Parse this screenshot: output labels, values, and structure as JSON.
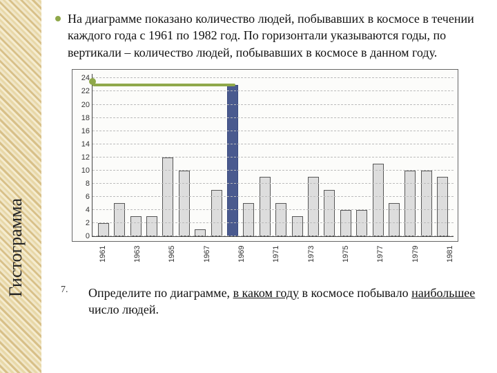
{
  "sidebar": {
    "title": "Гистограмма"
  },
  "problem": {
    "text": "На диаграмме показано количество людей, побывавших в космосе в течении каждого года с 1961 по 1982 год. По горизонтали указываются годы, по вертикали – количество людей, побывавших в космосе в данном году."
  },
  "chart": {
    "type": "bar",
    "y_ticks": [
      0,
      2,
      4,
      6,
      8,
      10,
      12,
      14,
      16,
      18,
      20,
      22,
      24
    ],
    "y_max": 25,
    "bars": [
      {
        "year": "1961",
        "value": 2,
        "highlighted": false
      },
      {
        "year": "1962",
        "value": 5,
        "highlighted": false
      },
      {
        "year": "1963",
        "value": 3,
        "highlighted": false
      },
      {
        "year": "1964",
        "value": 3,
        "highlighted": false
      },
      {
        "year": "1965",
        "value": 12,
        "highlighted": false
      },
      {
        "year": "1966",
        "value": 10,
        "highlighted": false
      },
      {
        "year": "1967",
        "value": 1,
        "highlighted": false
      },
      {
        "year": "1968",
        "value": 7,
        "highlighted": false
      },
      {
        "year": "1969",
        "value": 23,
        "highlighted": true
      },
      {
        "year": "1970",
        "value": 5,
        "highlighted": false
      },
      {
        "year": "1971",
        "value": 9,
        "highlighted": false
      },
      {
        "year": "1972",
        "value": 5,
        "highlighted": false
      },
      {
        "year": "1973",
        "value": 3,
        "highlighted": false
      },
      {
        "year": "1974",
        "value": 9,
        "highlighted": false
      },
      {
        "year": "1975",
        "value": 7,
        "highlighted": false
      },
      {
        "year": "1976",
        "value": 4,
        "highlighted": false
      },
      {
        "year": "1977",
        "value": 4,
        "highlighted": false
      },
      {
        "year": "1978",
        "value": 11,
        "highlighted": false
      },
      {
        "year": "1979",
        "value": 5,
        "highlighted": false
      },
      {
        "year": "1980",
        "value": 10,
        "highlighted": false
      },
      {
        "year": "1981",
        "value": 10,
        "highlighted": false
      },
      {
        "year": "1982",
        "value": 9,
        "highlighted": false
      }
    ],
    "x_labels": [
      "1961",
      "",
      "1963",
      "",
      "1965",
      "",
      "1967",
      "",
      "1969",
      "",
      "1971",
      "",
      "1973",
      "",
      "1975",
      "",
      "1977",
      "",
      "1979",
      "",
      "1981",
      ""
    ],
    "annotation": {
      "value": 23,
      "color": "#8fa84a"
    },
    "bar_fill": "#dddddd",
    "bar_stroke": "#555555",
    "highlight_fill": "#4a5a8f",
    "grid_color": "#bbbbbb",
    "background": "#fcfcfa",
    "label_fontsize": 11
  },
  "question": {
    "num": "7.",
    "prefix": "Определите по диаграмме, ",
    "u1": "в каком году",
    "mid": " в космосе побывало ",
    "u2": "наибольшее",
    "suffix": " число людей."
  },
  "colors": {
    "accent": "#8fa84a",
    "text": "#111111"
  }
}
